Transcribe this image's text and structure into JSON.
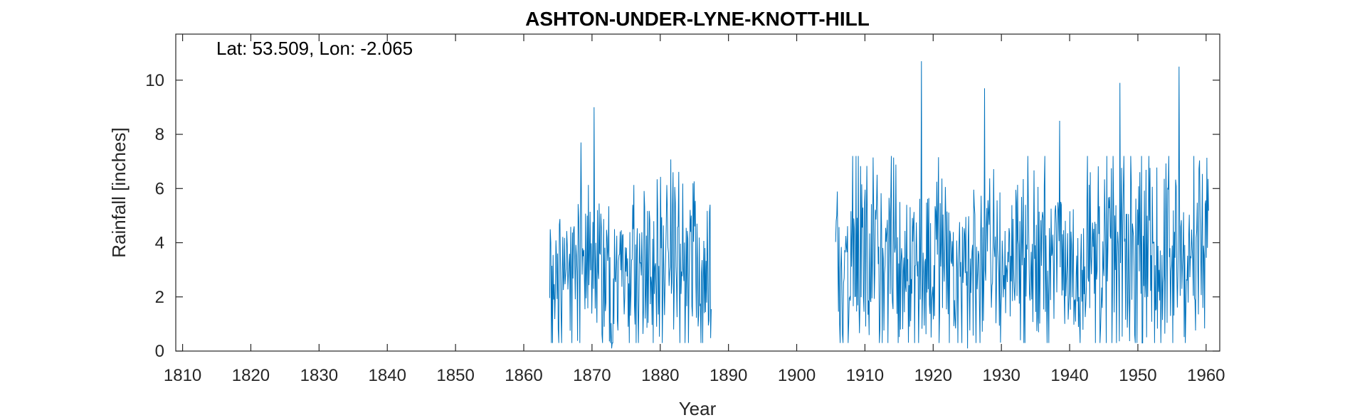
{
  "chart_data": {
    "type": "line",
    "title": "ASHTON-UNDER-LYNE-KNOTT-HILL",
    "xlabel": "Year",
    "ylabel": "Rainfall [inches]",
    "annotation": "Lat: 53.509, Lon: -2.065",
    "xlim": [
      1809,
      1962
    ],
    "ylim": [
      0,
      11.7
    ],
    "xticks": [
      1810,
      1820,
      1830,
      1840,
      1850,
      1860,
      1870,
      1880,
      1890,
      1900,
      1910,
      1920,
      1930,
      1940,
      1950,
      1960
    ],
    "yticks": [
      0,
      2,
      4,
      6,
      8,
      10
    ],
    "grid": false,
    "line_color": "#0072bd",
    "series": [
      {
        "segments": [
          {
            "x_start": 1863.8,
            "x_end": 1887.5,
            "mean": 2.9,
            "amplitude": 1.6,
            "peaks": [
              [
                1868.4,
                7.7
              ],
              [
                1870.3,
                9.0
              ],
              [
                1872.9,
                0.1
              ],
              [
                1881.9,
                6.6
              ],
              [
                1884.8,
                6.2
              ]
            ]
          },
          {
            "x_start": 1905.7,
            "x_end": 1960.4,
            "mean": 3.3,
            "amplitude": 1.8,
            "peaks": [
              [
                1918.3,
                10.7
              ],
              [
                1927.5,
                9.7
              ],
              [
                1925.0,
                0.1
              ],
              [
                1938.5,
                8.5
              ],
              [
                1947.4,
                9.9
              ],
              [
                1956.0,
                10.5
              ]
            ]
          }
        ]
      }
    ]
  }
}
